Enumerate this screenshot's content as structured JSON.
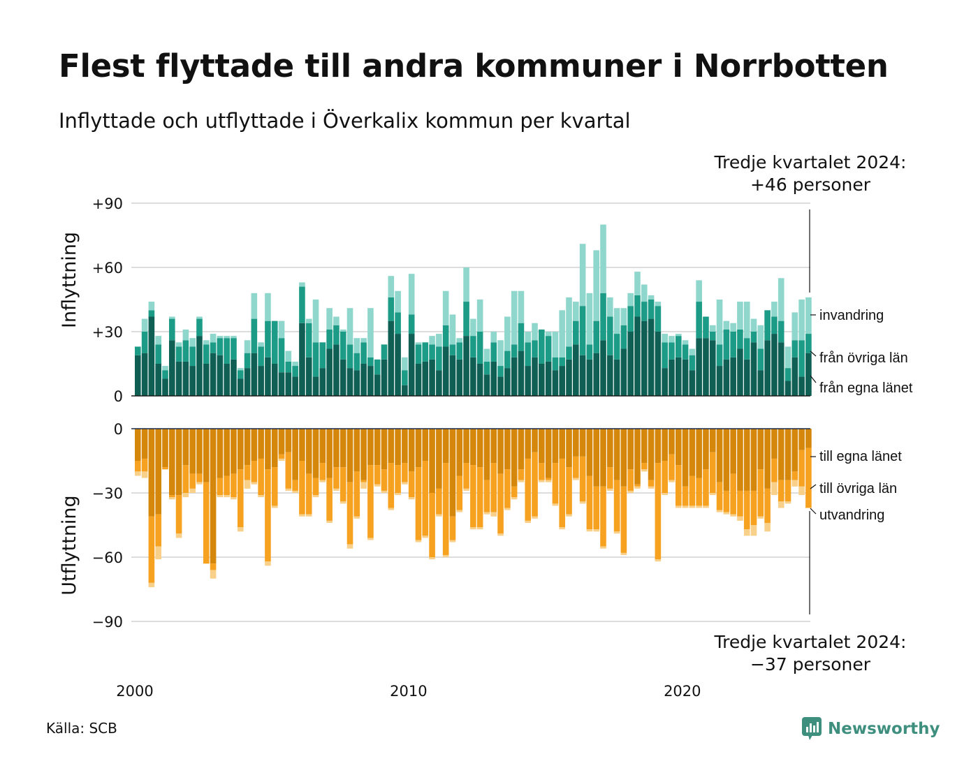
{
  "title": "Flest flyttade till andra kommuner i Norrbotten",
  "subtitle": "Inflyttade och utflyttade i Överkalix kommun per kvartal",
  "source": "Källa: SCB",
  "brand": "Newsworthy",
  "annotation_in": [
    "Tredje kvartalet 2024:",
    "+46 personer"
  ],
  "annotation_out": [
    "Tredje kvartalet 2024:",
    "−37 personer"
  ],
  "colors": {
    "in_own": "#0f5f55",
    "in_other": "#1c9b87",
    "in_immig": "#8fd6cc",
    "out_own": "#d4870a",
    "out_other": "#f6a11f",
    "out_emig": "#f9d08a",
    "grid": "#dddddd",
    "logo": "#3f8f7f"
  },
  "chart_data": {
    "type": "bar",
    "stacked": true,
    "period": "kvartal",
    "first_quarter": "2000 K1",
    "last_quarter": "2024 K3",
    "ylabel_in": "Inflyttning",
    "ylabel_out": "Utflyttning",
    "ylim_in": [
      0,
      90
    ],
    "ylim_out": [
      -90,
      0
    ],
    "yticks_in": [
      "0",
      "+30",
      "+60",
      "+90"
    ],
    "yticks_out": [
      "0",
      "−30",
      "−60",
      "−90"
    ],
    "xticks": [
      {
        "year": 2000,
        "label": "2000"
      },
      {
        "year": 2010,
        "label": "2010"
      },
      {
        "year": 2020,
        "label": "2020"
      }
    ],
    "grid": true,
    "series_in": [
      {
        "name": "från egna länet",
        "values": [
          19,
          20,
          37,
          15,
          8,
          26,
          16,
          16,
          14,
          28,
          15,
          20,
          19,
          15,
          17,
          8,
          13,
          20,
          14,
          18,
          15,
          11,
          11,
          9,
          34,
          18,
          9,
          13,
          22,
          24,
          17,
          13,
          12,
          15,
          14,
          10,
          17,
          35,
          29,
          5,
          29,
          15,
          16,
          17,
          12,
          23,
          19,
          17,
          28,
          18,
          15,
          10,
          16,
          9,
          13,
          18,
          21,
          14,
          18,
          15,
          16,
          12,
          14,
          17,
          24,
          19,
          17,
          20,
          26,
          19,
          17,
          22,
          30,
          37,
          35,
          36,
          30,
          13,
          17,
          18,
          17,
          12,
          27,
          27,
          26,
          14,
          17,
          18,
          22,
          17,
          25,
          12,
          26,
          29,
          25,
          7,
          18,
          9,
          20
        ]
      },
      {
        "name": "från övriga län",
        "values": [
          4,
          10,
          3,
          9,
          4,
          10,
          7,
          10,
          9,
          8,
          9,
          5,
          8,
          12,
          10,
          4,
          7,
          16,
          9,
          17,
          20,
          16,
          5,
          5,
          17,
          16,
          16,
          12,
          9,
          9,
          13,
          11,
          8,
          10,
          4,
          7,
          7,
          11,
          10,
          7,
          9,
          9,
          9,
          7,
          11,
          10,
          5,
          8,
          16,
          10,
          15,
          6,
          9,
          5,
          8,
          6,
          13,
          11,
          8,
          16,
          12,
          6,
          4,
          6,
          11,
          23,
          7,
          15,
          22,
          18,
          12,
          11,
          12,
          10,
          9,
          9,
          12,
          12,
          8,
          10,
          7,
          7,
          17,
          10,
          4,
          10,
          14,
          12,
          9,
          10,
          5,
          10,
          14,
          8,
          10,
          6,
          8,
          17,
          9
        ]
      },
      {
        "name": "invandring",
        "values": [
          0,
          6,
          4,
          4,
          2,
          1,
          2,
          5,
          4,
          1,
          2,
          4,
          1,
          1,
          1,
          1,
          6,
          12,
          2,
          13,
          0,
          8,
          5,
          2,
          2,
          2,
          20,
          0,
          10,
          4,
          1,
          17,
          7,
          2,
          23,
          0,
          0,
          10,
          10,
          6,
          19,
          1,
          0,
          4,
          6,
          16,
          14,
          2,
          16,
          8,
          15,
          6,
          5,
          12,
          16,
          25,
          15,
          5,
          8,
          0,
          2,
          12,
          22,
          23,
          9,
          29,
          24,
          33,
          32,
          9,
          12,
          8,
          6,
          11,
          8,
          2,
          2,
          4,
          3,
          1,
          2,
          3,
          10,
          0,
          3,
          21,
          4,
          4,
          13,
          17,
          6,
          11,
          0,
          7,
          20,
          10,
          13,
          19,
          17
        ]
      }
    ],
    "series_out": [
      {
        "name": "till egna länet",
        "values": [
          -15,
          -14,
          -41,
          -40,
          -18,
          -31,
          -31,
          -17,
          -21,
          -21,
          -25,
          -63,
          -23,
          -22,
          -21,
          -19,
          -17,
          -15,
          -14,
          -19,
          -18,
          -12,
          -11,
          -24,
          -15,
          -21,
          -23,
          -16,
          -23,
          -18,
          -18,
          -25,
          -20,
          -24,
          -17,
          -17,
          -19,
          -16,
          -17,
          -16,
          -20,
          -18,
          -15,
          -30,
          -28,
          -16,
          -41,
          -22,
          -16,
          -17,
          -18,
          -24,
          -16,
          -21,
          -19,
          -27,
          -19,
          -14,
          -11,
          -16,
          -23,
          -16,
          -14,
          -18,
          -13,
          -13,
          -22,
          -27,
          -27,
          -18,
          -24,
          -27,
          -19,
          -26,
          -16,
          -24,
          -16,
          -15,
          -12,
          -17,
          -27,
          -22,
          -23,
          -19,
          -11,
          -25,
          -29,
          -21,
          -29,
          -29,
          -29,
          -19,
          -28,
          -14,
          -24,
          -24,
          -20,
          -10,
          -9
        ]
      },
      {
        "name": "till övriga län",
        "values": [
          -5,
          -6,
          -31,
          -15,
          -1,
          -1,
          -18,
          -13,
          -7,
          -4,
          -38,
          -3,
          -8,
          -9,
          -11,
          -27,
          -7,
          -10,
          -17,
          -43,
          -18,
          -2,
          -17,
          -5,
          -25,
          -19,
          -8,
          -8,
          -20,
          -10,
          -16,
          -29,
          -21,
          -1,
          -34,
          -9,
          -10,
          -21,
          -13,
          -9,
          -12,
          -34,
          -35,
          -30,
          -12,
          -43,
          -11,
          -16,
          -12,
          -29,
          -28,
          -15,
          -23,
          -28,
          -18,
          -5,
          -5,
          -29,
          -30,
          -8,
          -1,
          -19,
          -32,
          -22,
          -10,
          -21,
          -25,
          -20,
          -28,
          -10,
          -24,
          -31,
          -10,
          -1,
          -3,
          -3,
          -45,
          -15,
          -12,
          -19,
          -9,
          -14,
          -13,
          -17,
          -19,
          -13,
          -10,
          -19,
          -12,
          -18,
          -16,
          -22,
          -16,
          -11,
          -10,
          -10,
          -4,
          -17,
          -28
        ]
      },
      {
        "name": "utvandring",
        "values": [
          -2,
          -3,
          -2,
          -6,
          0,
          -1,
          -2,
          -2,
          -2,
          -1,
          0,
          -4,
          -1,
          -1,
          -1,
          -2,
          -4,
          -1,
          -1,
          -2,
          -1,
          -1,
          -1,
          -1,
          -1,
          -1,
          -1,
          -1,
          -1,
          -1,
          -1,
          -2,
          -1,
          -3,
          -1,
          -1,
          -1,
          -1,
          -1,
          -1,
          -1,
          -1,
          -1,
          -1,
          -1,
          -1,
          -1,
          -1,
          -1,
          -1,
          -1,
          -1,
          -2,
          -1,
          -1,
          -1,
          -1,
          -1,
          -1,
          -1,
          -1,
          -1,
          -1,
          -1,
          -1,
          -1,
          -1,
          -1,
          -1,
          -1,
          -1,
          -1,
          -1,
          -1,
          -1,
          -1,
          -1,
          -1,
          -1,
          -1,
          -1,
          -1,
          -1,
          -1,
          -1,
          -1,
          -1,
          -1,
          -2,
          -3,
          -5,
          -1,
          -4,
          -6,
          -3,
          -1,
          -3,
          -4,
          0
        ]
      }
    ],
    "legend_in": [
      "invandring",
      "från övriga län",
      "från egna länet"
    ],
    "legend_out": [
      "till egna länet",
      "till övriga län",
      "utvandring"
    ],
    "annotation_value_in": 46,
    "annotation_value_out": -37
  }
}
